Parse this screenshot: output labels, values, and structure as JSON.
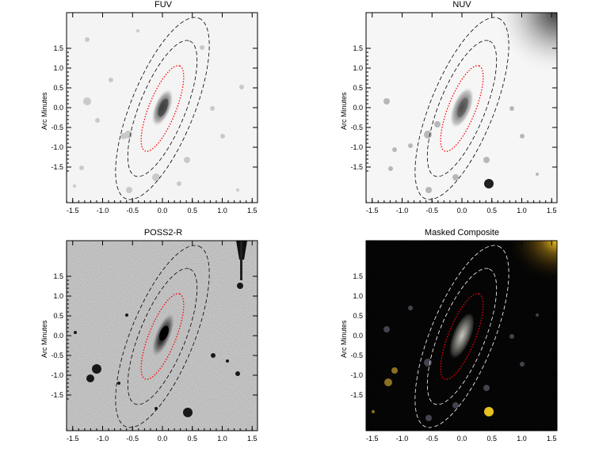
{
  "panels": [
    {
      "title": "FUV",
      "ylabel": "Arc Minutes",
      "theme": "light"
    },
    {
      "title": "NUV",
      "ylabel": "Arc Minutes",
      "theme": "light"
    },
    {
      "title": "POSS2-R",
      "ylabel": "Arc Minutes",
      "theme": "gray"
    },
    {
      "title": "Masked Composite",
      "ylabel": "Arc Minutes",
      "theme": "dark"
    }
  ],
  "x_ticks": [
    "-1.5",
    "-1.0",
    "-0.5",
    "0.0",
    "0.5",
    "1.0",
    "1.5"
  ],
  "y_ticks": [
    "1.5",
    "1.0",
    "0.5",
    "0.0",
    "-0.5",
    "-1.0",
    "-1.5"
  ],
  "colors": {
    "inner_ellipse": "#ff0000",
    "outer_ellipse_light": "#000000",
    "outer_ellipse_dark": "#ffffff",
    "composite_highlight": "#e8c020"
  }
}
